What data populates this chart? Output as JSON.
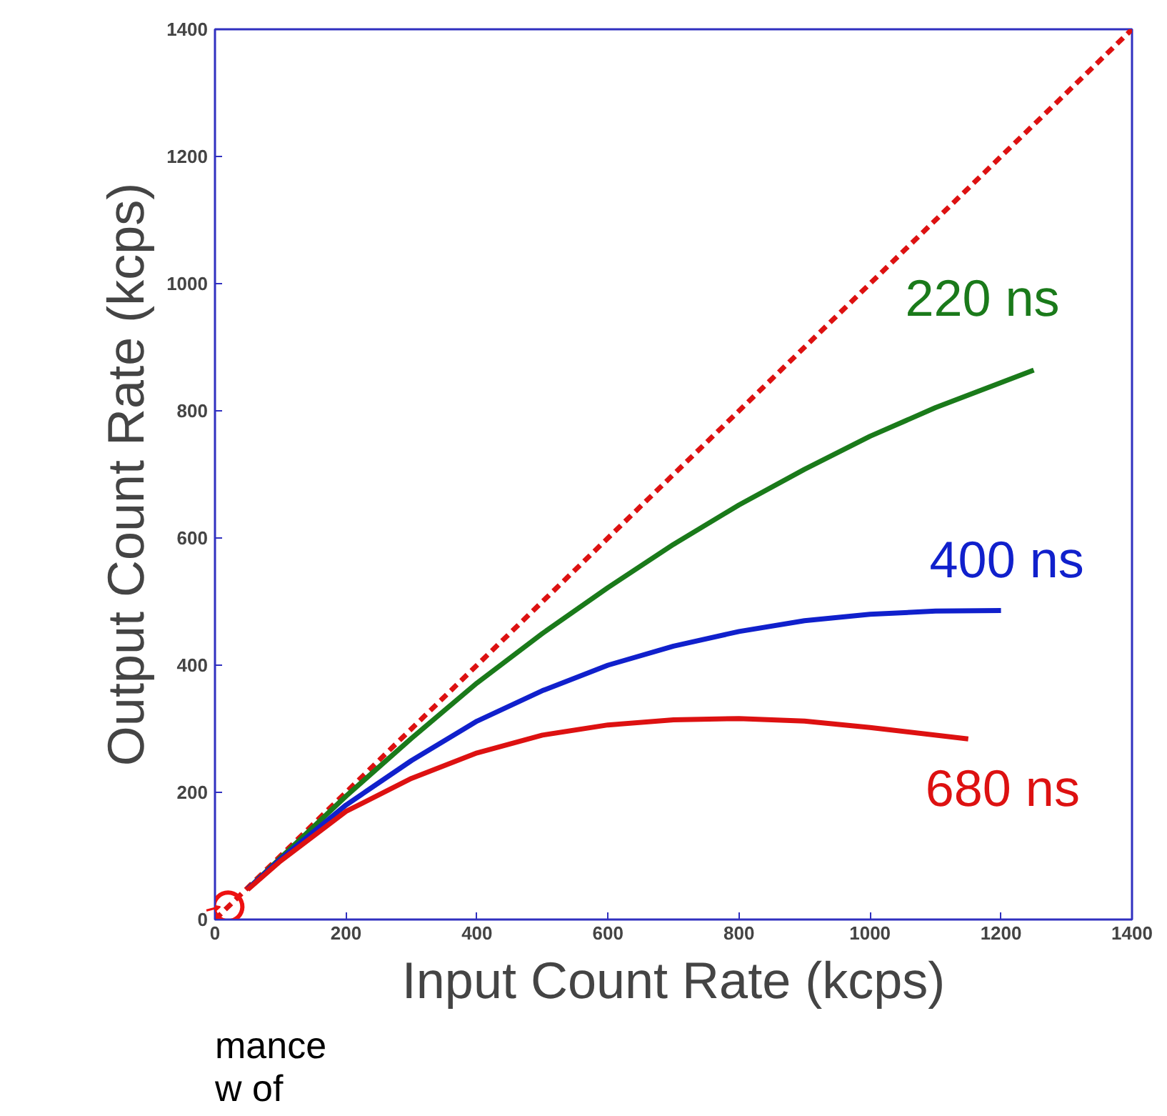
{
  "chart_data": {
    "type": "line",
    "xlabel": "Input Count Rate (kcps)",
    "ylabel": "Output Count Rate (kcps)",
    "xlim": [
      0,
      1400
    ],
    "ylim": [
      0,
      1400
    ],
    "xticks": [
      0,
      200,
      400,
      600,
      800,
      1000,
      1200,
      1400
    ],
    "yticks": [
      0,
      200,
      400,
      600,
      800,
      1000,
      1200,
      1400
    ],
    "grid": false,
    "marker": "none",
    "series": [
      {
        "color": "#dd1111",
        "line_style": "dashed",
        "x": [
          0,
          1400
        ],
        "values": [
          0,
          1400
        ]
      },
      {
        "name": "220 ns",
        "color": "#1a7a1a",
        "line_style": "solid",
        "x": [
          50,
          100,
          200,
          300,
          400,
          500,
          600,
          700,
          800,
          900,
          1000,
          1100,
          1250
        ],
        "values": [
          48,
          97,
          194,
          285,
          372,
          450,
          522,
          590,
          652,
          708,
          760,
          805,
          864
        ]
      },
      {
        "name": "400 ns",
        "color": "#1020cc",
        "line_style": "solid",
        "x": [
          50,
          100,
          200,
          300,
          400,
          500,
          600,
          700,
          800,
          900,
          1000,
          1100,
          1200
        ],
        "values": [
          48,
          95,
          180,
          250,
          312,
          360,
          400,
          430,
          453,
          470,
          480,
          485,
          486
        ]
      },
      {
        "name": "680 ns",
        "color": "#dd1111",
        "line_style": "solid",
        "x": [
          50,
          100,
          200,
          300,
          400,
          500,
          600,
          700,
          800,
          900,
          1000,
          1150
        ],
        "values": [
          47,
          92,
          170,
          222,
          262,
          290,
          306,
          314,
          316,
          312,
          302,
          284
        ]
      },
      {
        "type": "scatter",
        "marker": "circle",
        "color": "#ee1111",
        "x": [
          20
        ],
        "values": [
          20
        ]
      }
    ],
    "annotations": [
      "mance\nw of"
    ]
  }
}
